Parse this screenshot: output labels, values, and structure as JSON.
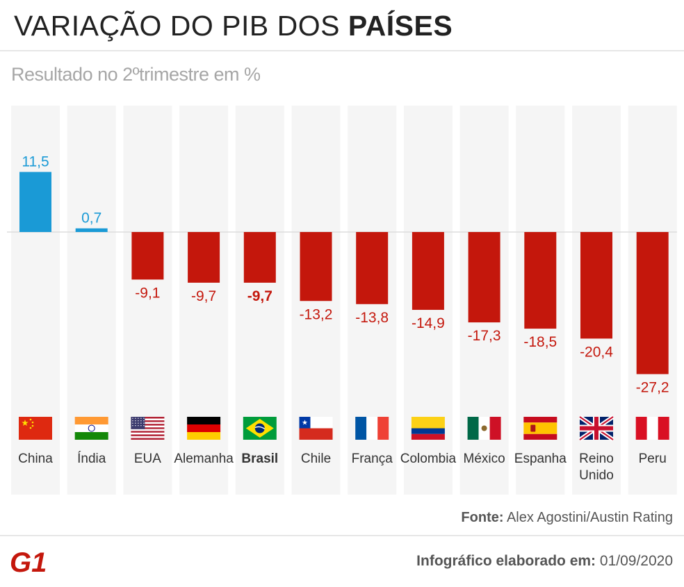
{
  "title_part1": "VARIAÇÃO DO PIB DOS ",
  "title_part2": "PAÍSES",
  "subtitle": "Resultado no 2ºtrimestre em %",
  "source_label": "Fonte:",
  "source_text": "Alex Agostini/Austin Rating",
  "logo_text": "G1",
  "credit_label": "Infográfico elaborado em:",
  "credit_date": "01/09/2020",
  "colors": {
    "positive": "#1a9ad6",
    "negative": "#c4170c",
    "column_bg": "#f5f5f5",
    "axis": "#dddddd"
  },
  "chart_data": {
    "type": "bar",
    "categories": [
      "China",
      "Índia",
      "EUA",
      "Alemanha",
      "Brasil",
      "Chile",
      "França",
      "Colombia",
      "México",
      "Espanha",
      "Reino Unido",
      "Peru"
    ],
    "values": [
      11.5,
      0.7,
      -9.1,
      -9.7,
      -9.7,
      -13.2,
      -13.8,
      -14.9,
      -17.3,
      -18.5,
      -20.4,
      -27.2
    ],
    "value_labels": [
      "11,5",
      "0,7",
      "-9,1",
      "-9,7",
      "-9,7",
      "-13,2",
      "-13,8",
      "-14,9",
      "-17,3",
      "-18,5",
      "-20,4",
      "-27,2"
    ],
    "highlight": "Brasil",
    "flags": [
      "china-flag",
      "india-flag",
      "usa-flag",
      "germany-flag",
      "brazil-flag",
      "chile-flag",
      "france-flag",
      "colombia-flag",
      "mexico-flag",
      "spain-flag",
      "uk-flag",
      "peru-flag"
    ],
    "ylim": [
      -27.2,
      11.5
    ],
    "grid": false,
    "legend": "none"
  }
}
